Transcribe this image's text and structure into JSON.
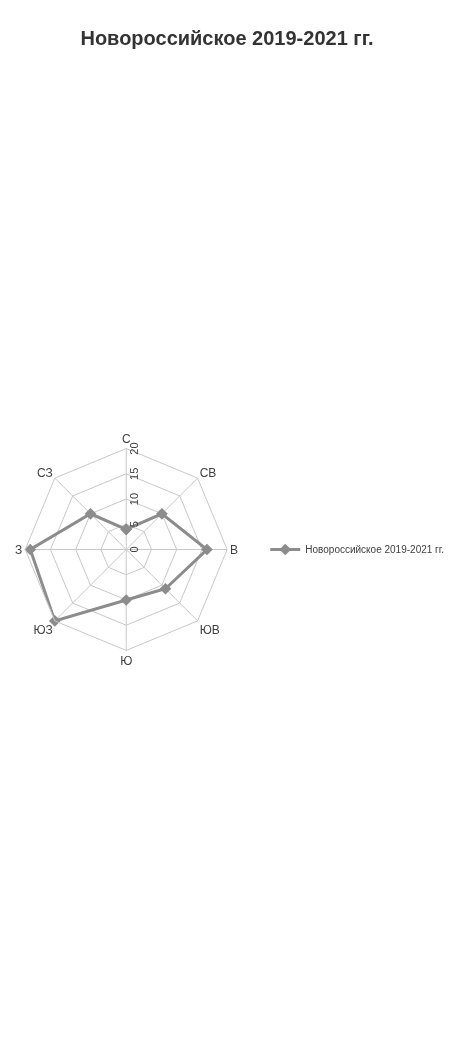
{
  "chart_data": {
    "type": "radar",
    "title": "Новороссийское 2019-2021 гг.",
    "categories": [
      "С",
      "СВ",
      "В",
      "ЮВ",
      "Ю",
      "ЮЗ",
      "З",
      "СЗ"
    ],
    "series": [
      {
        "name": "Новороссийское 2019-2021 гг.",
        "color": "#8c8c8c",
        "values": [
          4,
          10,
          16,
          11,
          10,
          20,
          19,
          10
        ]
      }
    ],
    "ylim": [
      0,
      20
    ],
    "yticks": [
      0,
      5,
      10,
      15,
      20
    ],
    "grid": true,
    "legend": "right",
    "marker": "diamond",
    "line_style": "solid"
  }
}
